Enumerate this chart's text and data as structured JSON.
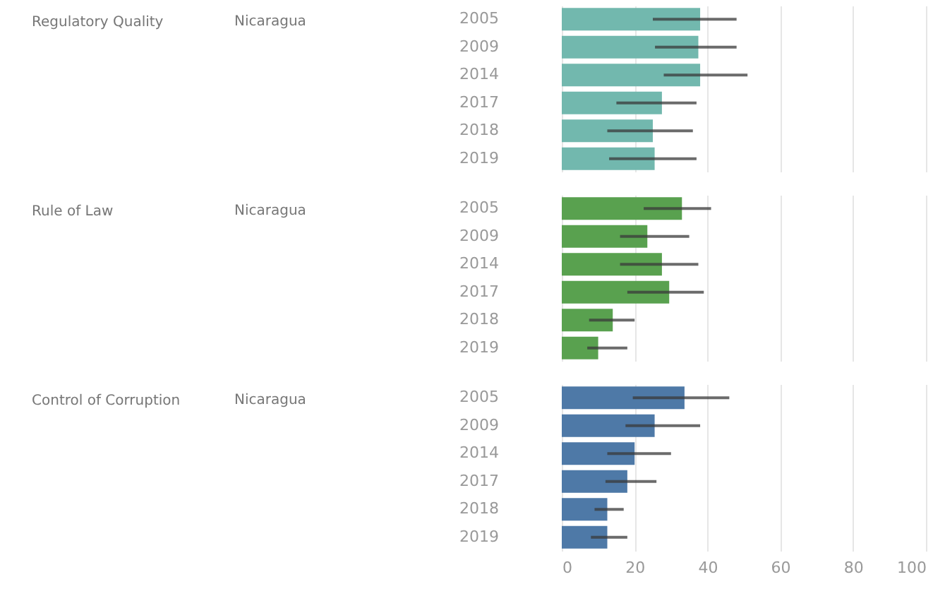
{
  "chart_data": [
    {
      "type": "bar",
      "orientation": "horizontal",
      "ylabel": "Regulatory Quality",
      "annotations": [
        "Nicaragua"
      ],
      "categories": [
        "2005",
        "2009",
        "2014",
        "2017",
        "2018",
        "2019"
      ],
      "series": [
        {
          "color": "#72b8ae",
          "values": [
            38,
            37.5,
            38,
            27.5,
            25,
            25.5
          ],
          "errors": [
            [
              25,
              48
            ],
            [
              25.6,
              48
            ],
            [
              28,
              51
            ],
            [
              15,
              37
            ],
            [
              12.5,
              36
            ],
            [
              13,
              37
            ]
          ]
        }
      ],
      "xlim": [
        0,
        100
      ],
      "xticks": [
        0,
        20,
        40,
        60,
        80,
        100
      ],
      "grid": "x",
      "tick_labels": "y"
    },
    {
      "type": "bar",
      "orientation": "horizontal",
      "ylabel": "Rule of Law",
      "annotations": [
        "Nicaragua"
      ],
      "categories": [
        "2005",
        "2009",
        "2014",
        "2017",
        "2018",
        "2019"
      ],
      "series": [
        {
          "color": "#59a14f",
          "values": [
            33,
            23.5,
            27.5,
            29.5,
            14,
            10
          ],
          "errors": [
            [
              22.5,
              41
            ],
            [
              16,
              35
            ],
            [
              16,
              37.5
            ],
            [
              18,
              39
            ],
            [
              7.5,
              20
            ],
            [
              7,
              18
            ]
          ]
        }
      ],
      "xlim": [
        0,
        100
      ],
      "xticks": [
        0,
        20,
        40,
        60,
        80,
        100
      ],
      "grid": "x",
      "tick_labels": "y"
    },
    {
      "type": "bar",
      "orientation": "horizontal",
      "ylabel": "Control of Corruption",
      "annotations": [
        "Nicaragua"
      ],
      "categories": [
        "2005",
        "2009",
        "2014",
        "2017",
        "2018",
        "2019"
      ],
      "series": [
        {
          "color": "#4e79a7",
          "values": [
            33.7,
            25.5,
            20,
            18,
            12.5,
            12.5
          ],
          "errors": [
            [
              19.5,
              46
            ],
            [
              17.5,
              38
            ],
            [
              12.5,
              30
            ],
            [
              12,
              26
            ],
            [
              9,
              17
            ],
            [
              8,
              18
            ]
          ]
        }
      ],
      "xlim": [
        0,
        100
      ],
      "xticks": [
        0,
        20,
        40,
        60,
        80,
        100
      ],
      "grid": "x"
    }
  ]
}
